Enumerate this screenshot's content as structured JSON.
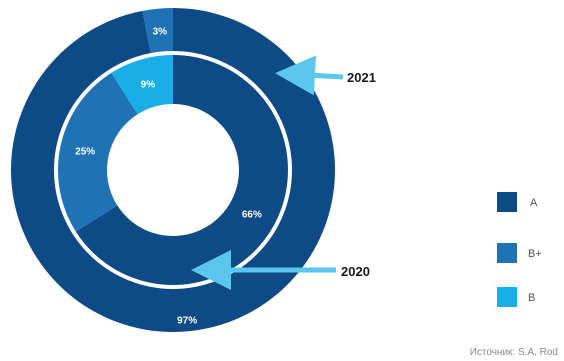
{
  "chart_data": {
    "type": "pie",
    "subtype": "nested-donut",
    "colors": {
      "A": "#0d4a86",
      "B+": "#1f73b5",
      "B": "#1aaee6",
      "arrow": "#5bc6ee",
      "ring_separator": "#ffffff"
    },
    "legend": {
      "placement": "right",
      "entries": [
        "A",
        "B+",
        "B"
      ]
    },
    "series": [
      {
        "name": "2021",
        "ring": "outer",
        "categories": [
          "A",
          "B+"
        ],
        "values": [
          97,
          3
        ],
        "labels": [
          "97%",
          "3%"
        ]
      },
      {
        "name": "2020",
        "ring": "inner",
        "categories": [
          "A",
          "B+",
          "B"
        ],
        "values": [
          66,
          25,
          9
        ],
        "labels": [
          "66%",
          "25%",
          "9%"
        ]
      }
    ],
    "annotations": [
      "2021",
      "2020"
    ]
  },
  "source": "Источник: S.A. Rod"
}
